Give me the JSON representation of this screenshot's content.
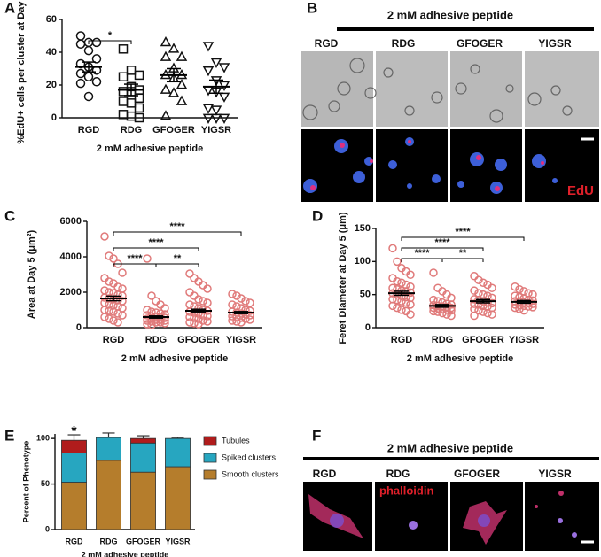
{
  "chart_data": [
    {
      "type": "dotplot",
      "label": "A",
      "y_label": "%EdU+ cells per cluster at Day 5",
      "x_label": "2 mM adhesive peptide",
      "categories": [
        "RGD",
        "RDG",
        "GFOGER",
        "YIGSR"
      ],
      "markers": [
        "circle",
        "square",
        "triangle",
        "triangle-down"
      ],
      "color": "#111111",
      "groups": [
        [
          50,
          46,
          46,
          45,
          41,
          36,
          33,
          31,
          29,
          27,
          25,
          22,
          21,
          13
        ],
        [
          42,
          29,
          26,
          25,
          19,
          17,
          16,
          16,
          12,
          10,
          9,
          6,
          2,
          1,
          0
        ],
        [
          46,
          42,
          37,
          37,
          30,
          26,
          26,
          24,
          20,
          17,
          15,
          10,
          1
        ],
        [
          44,
          34,
          31,
          29,
          23,
          20,
          17,
          16,
          13,
          6,
          5,
          0,
          0,
          0
        ]
      ],
      "means": [
        31,
        17,
        26,
        19
      ],
      "sems": [
        3,
        3.5,
        4,
        4
      ],
      "ylim": [
        0,
        60
      ],
      "yticks": [
        0,
        20,
        40,
        60
      ],
      "brackets": [
        {
          "from": "RGD",
          "to": "RDG",
          "text": "*"
        }
      ]
    },
    {
      "type": "dotplot",
      "label": "C",
      "y_label": "Area at Day 5 (μm²)",
      "x_label": "2 mM adhesive peptide",
      "categories": [
        "RGD",
        "RDG",
        "GFOGER",
        "YIGSR"
      ],
      "markers": [
        "circle",
        "circle",
        "circle",
        "circle"
      ],
      "color": "#e07a7a",
      "groups": [
        [
          5150,
          4050,
          3900,
          3600,
          3100,
          2800,
          2600,
          2500,
          2300,
          2200,
          2100,
          2000,
          1950,
          1850,
          1800,
          1700,
          1650,
          1600,
          1550,
          1500,
          1400,
          1300,
          1250,
          1200,
          1100,
          1000,
          950,
          900,
          800,
          700,
          600,
          500,
          400,
          300
        ],
        [
          3900,
          1800,
          1500,
          1300,
          1100,
          1000,
          900,
          850,
          800,
          750,
          700,
          650,
          600,
          600,
          550,
          500,
          500,
          450,
          450,
          400,
          400,
          350,
          300,
          300,
          250,
          200,
          150
        ],
        [
          3050,
          2800,
          2600,
          2400,
          2200,
          2000,
          1800,
          1600,
          1500,
          1400,
          1300,
          1200,
          1100,
          1000,
          950,
          900,
          850,
          800,
          700,
          650,
          600,
          550,
          500,
          400,
          350,
          300,
          250,
          200
        ],
        [
          1900,
          1800,
          1650,
          1500,
          1400,
          1300,
          1200,
          1100,
          1000,
          950,
          900,
          850,
          800,
          750,
          700,
          650,
          600,
          550,
          500,
          450,
          400,
          350,
          300
        ]
      ],
      "means": [
        1650,
        600,
        950,
        850
      ],
      "sems": [
        130,
        60,
        90,
        60
      ],
      "ylim": [
        0,
        6000
      ],
      "yticks": [
        0,
        2000,
        4000,
        6000
      ],
      "brackets": [
        {
          "from": "RGD",
          "to": "RDG",
          "text": "****"
        },
        {
          "from": "RDG",
          "to": "GFOGER",
          "text": "**"
        },
        {
          "from": "RGD",
          "to": "GFOGER",
          "text": "****"
        },
        {
          "from": "RGD",
          "to": "YIGSR",
          "text": "****"
        }
      ]
    },
    {
      "type": "dotplot",
      "label": "D",
      "y_label": "Feret Diameter at Day 5 (μm)",
      "x_label": "2 mM adhesive peptide",
      "categories": [
        "RGD",
        "RDG",
        "GFOGER",
        "YIGSR"
      ],
      "markers": [
        "circle",
        "circle",
        "circle",
        "circle"
      ],
      "color": "#e07a7a",
      "groups": [
        [
          120,
          100,
          90,
          85,
          80,
          75,
          70,
          68,
          65,
          62,
          60,
          58,
          56,
          55,
          53,
          52,
          50,
          48,
          46,
          45,
          43,
          42,
          40,
          38,
          35,
          33,
          30,
          27,
          25,
          20
        ],
        [
          83,
          60,
          55,
          50,
          45,
          42,
          40,
          38,
          36,
          35,
          34,
          33,
          32,
          31,
          30,
          30,
          29,
          28,
          27,
          26,
          25,
          24,
          22,
          20,
          18
        ],
        [
          78,
          72,
          68,
          65,
          60,
          56,
          52,
          50,
          48,
          45,
          43,
          42,
          40,
          38,
          37,
          36,
          35,
          33,
          32,
          30,
          28,
          26,
          24,
          22,
          20,
          18
        ],
        [
          62,
          58,
          55,
          52,
          50,
          48,
          46,
          44,
          42,
          41,
          40,
          39,
          38,
          37,
          36,
          35,
          34,
          33,
          32,
          31,
          30,
          28,
          26
        ]
      ],
      "means": [
        52,
        33,
        40,
        39
      ],
      "sems": [
        3,
        2,
        2.5,
        2
      ],
      "ylim": [
        0,
        150
      ],
      "yticks": [
        0,
        50,
        100,
        150
      ],
      "brackets": [
        {
          "from": "RGD",
          "to": "RDG",
          "text": "****"
        },
        {
          "from": "RDG",
          "to": "GFOGER",
          "text": "**"
        },
        {
          "from": "RGD",
          "to": "GFOGER",
          "text": "****"
        },
        {
          "from": "RGD",
          "to": "YIGSR",
          "text": "****"
        }
      ]
    },
    {
      "type": "stacked_bar",
      "label": "E",
      "y_label": "Percent of Phenotype",
      "x_label": "2 mM adhesive peptide",
      "categories": [
        "RGD",
        "RDG",
        "GFOGER",
        "YIGSR"
      ],
      "series": [
        {
          "name": "Smooth clusters",
          "color": "#b57d2c",
          "values": [
            52,
            76,
            63,
            69
          ],
          "errors": [
            2,
            4,
            11,
            1
          ]
        },
        {
          "name": "Spiked clusters",
          "color": "#27a6c0",
          "values": [
            32,
            25,
            32,
            31
          ],
          "errors": [
            0,
            5,
            4,
            1
          ]
        },
        {
          "name": "Tubules",
          "color": "#b01c1c",
          "values": [
            14,
            0,
            5,
            0
          ],
          "errors": [
            6,
            0,
            3,
            0
          ]
        }
      ],
      "ylim": [
        0,
        105
      ],
      "yticks": [
        0,
        50,
        100
      ],
      "annotations": [
        {
          "category": "RGD",
          "text": "*"
        }
      ]
    }
  ],
  "image_panels": [
    {
      "label": "B",
      "title": "2 mM adhesive peptide",
      "columns": [
        "RGD",
        "RDG",
        "GFOGER",
        "YIGSR"
      ],
      "stain": "EdU"
    },
    {
      "label": "F",
      "title": "2 mM adhesive peptide",
      "columns": [
        "RGD",
        "RDG",
        "GFOGER",
        "YIGSR"
      ],
      "stain": "phalloidin"
    }
  ]
}
